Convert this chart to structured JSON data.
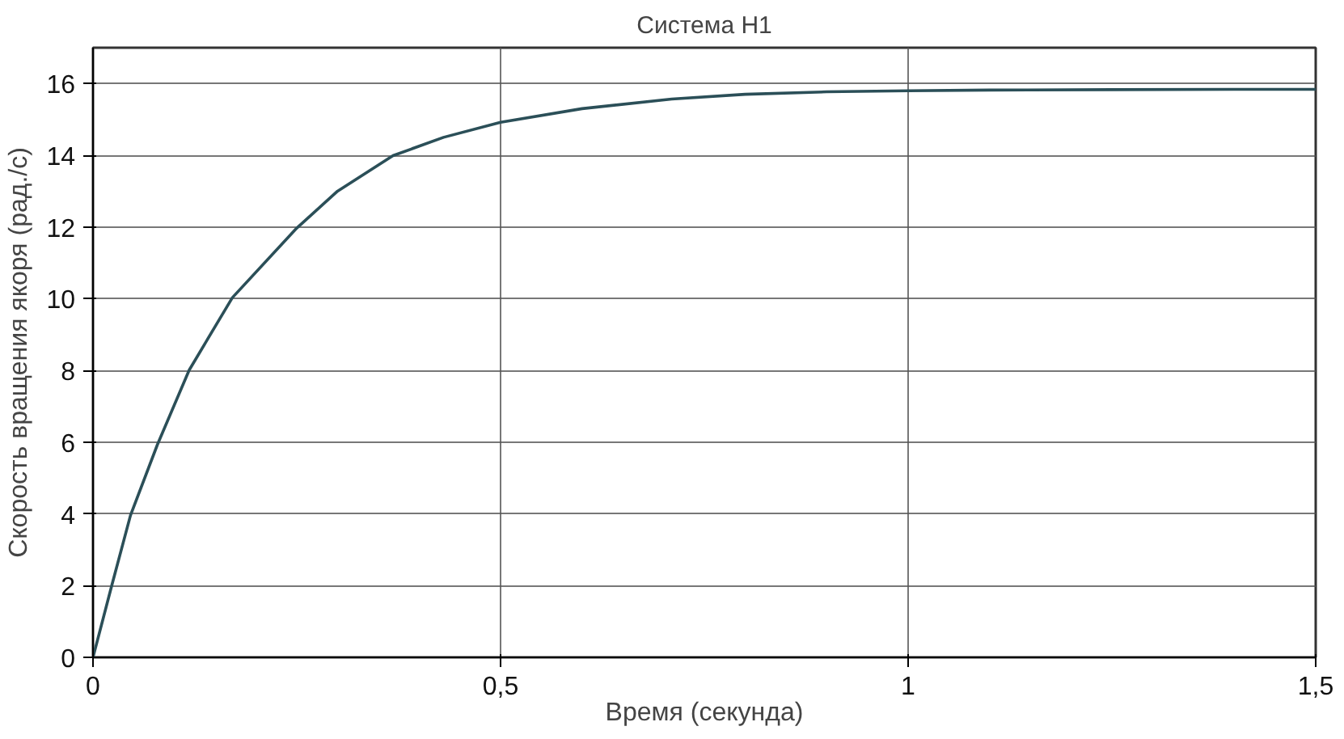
{
  "chart_data": {
    "type": "line",
    "title": "Система Н1",
    "xlabel": "Время (секунда)",
    "ylabel": "Скорость вращения якоря (рад./с)",
    "x": [
      0,
      0.023,
      0.046,
      0.079,
      0.118,
      0.171,
      0.25,
      0.3,
      0.368,
      0.43,
      0.5,
      0.6,
      0.71,
      0.8,
      0.9,
      1.0,
      1.1,
      1.25,
      1.4,
      1.5
    ],
    "series": [
      {
        "color": "#2b4f58",
        "values": [
          0,
          2,
          3.96,
          5.93,
          8.01,
          10.03,
          11.97,
          13.0,
          13.99,
          14.5,
          14.92,
          15.3,
          15.57,
          15.7,
          15.77,
          15.8,
          15.82,
          15.83,
          15.84,
          15.84
        ]
      }
    ],
    "xlim": [
      0,
      1.5
    ],
    "ylim": [
      0,
      17
    ],
    "xticks": [
      0,
      {
        "value": 0.5,
        "label": "0,5"
      },
      1,
      {
        "value": 1.5,
        "label": "1,5"
      }
    ],
    "yticks": [
      0,
      2,
      4,
      6,
      8,
      10,
      12,
      14,
      16
    ],
    "grid": true,
    "marker": "none",
    "line_style": "solid"
  }
}
